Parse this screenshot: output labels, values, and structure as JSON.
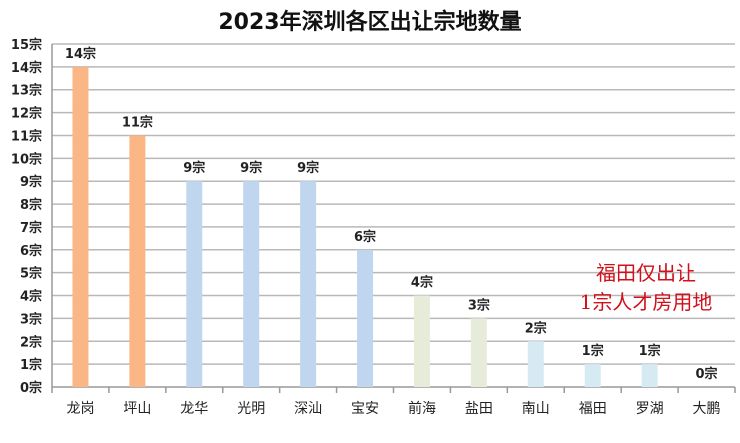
{
  "chart_data": {
    "type": "bar",
    "title": "2023年深圳各区出让宗地数量",
    "categories": [
      "龙岗",
      "坪山",
      "龙华",
      "光明",
      "深汕",
      "宝安",
      "前海",
      "盐田",
      "南山",
      "福田",
      "罗湖",
      "大鹏"
    ],
    "values": [
      14,
      11,
      9,
      9,
      9,
      6,
      4,
      3,
      2,
      1,
      1,
      0
    ],
    "data_labels": [
      "14宗",
      "11宗",
      "9宗",
      "9宗",
      "9宗",
      "6宗",
      "4宗",
      "3宗",
      "2宗",
      "1宗",
      "1宗",
      "0宗"
    ],
    "bar_colors": [
      "#FAB785",
      "#FAB785",
      "#C0D6EF",
      "#C0D6EF",
      "#C0D6EF",
      "#C0D6EF",
      "#E6EBDA",
      "#E6EBDA",
      "#D6EAF3",
      "#D6EAF3",
      "#D6EAF3",
      "#D6EAF3"
    ],
    "y_tick_labels": [
      "0宗",
      "1宗",
      "2宗",
      "3宗",
      "4宗",
      "5宗",
      "6宗",
      "7宗",
      "8宗",
      "9宗",
      "10宗",
      "11宗",
      "12宗",
      "13宗",
      "14宗",
      "15宗"
    ],
    "ylim": [
      0,
      15
    ],
    "grid": true,
    "xlabel": "",
    "ylabel": "",
    "annotation": [
      "福田仅出让",
      "1宗人才房用地"
    ],
    "annotation_color": "#D0101A"
  }
}
